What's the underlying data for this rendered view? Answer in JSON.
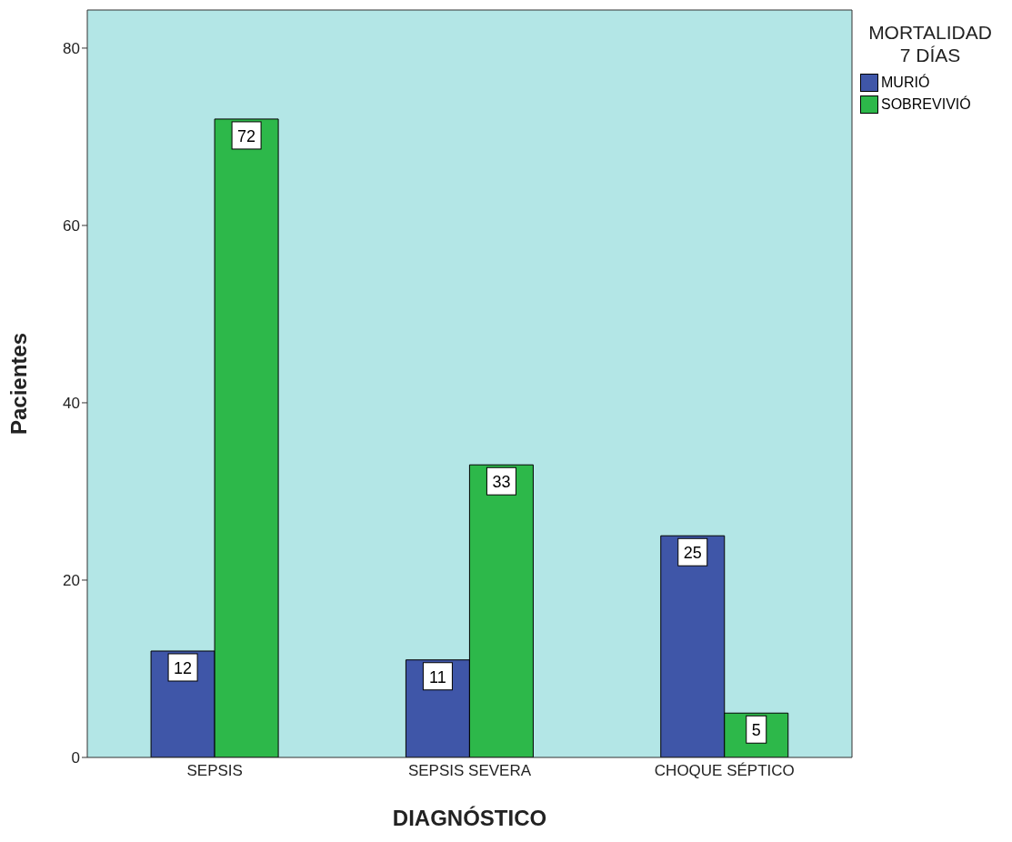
{
  "chart_data": {
    "type": "bar",
    "xlabel": "DIAGNÓSTICO",
    "ylabel": "Pacientes",
    "legend_title": "MORTALIDAD\n7 DÍAS",
    "categories": [
      "SEPSIS",
      "SEPSIS SEVERA",
      "CHOQUE SÉPTICO"
    ],
    "series": [
      {
        "name": "MURIÓ",
        "color": "#3f56a8",
        "values": [
          12,
          11,
          25
        ]
      },
      {
        "name": "SOBREVIVIÓ",
        "color": "#2db84a",
        "values": [
          72,
          33,
          5
        ]
      }
    ],
    "ylim": [
      0,
      84.3
    ],
    "yticks": [
      0,
      20,
      40,
      60,
      80
    ],
    "grid": false,
    "legend": "top right",
    "data_labels": true
  }
}
